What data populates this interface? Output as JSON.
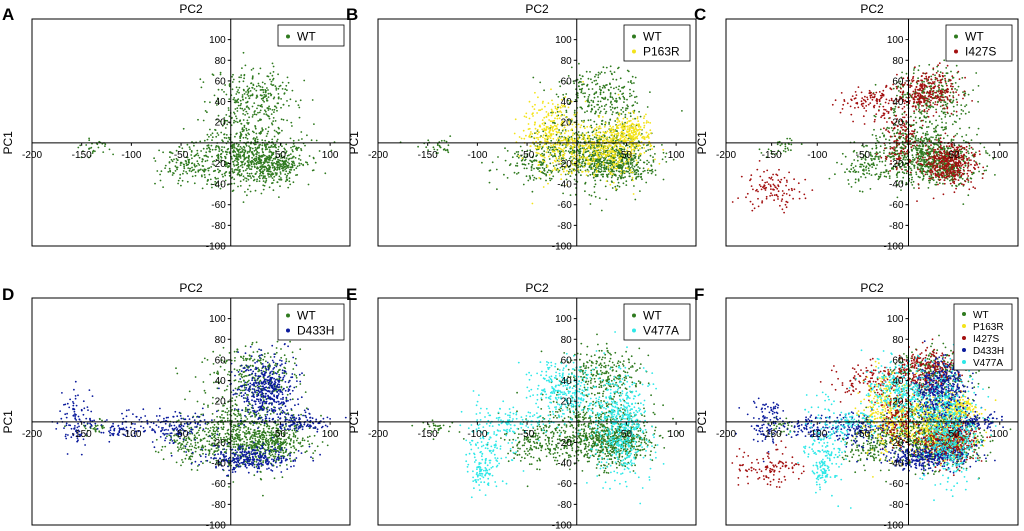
{
  "chart_data": [
    {
      "id": "A",
      "panel_label": "A",
      "type": "scatter",
      "top_label": "PC2",
      "side_label": "PC1",
      "xlim": [
        -200,
        120
      ],
      "ylim": [
        -100,
        120
      ],
      "x_ticks": [
        "-200",
        "-150",
        "-100",
        "-50",
        "50",
        "100"
      ],
      "y_ticks": [
        "-100",
        "-80",
        "-60",
        "-40",
        "-20",
        "20",
        "40",
        "60",
        "80",
        "100"
      ],
      "series": [
        {
          "name": "WT",
          "color": "#2f7a1f",
          "clusters": [
            [
              25,
              45,
              22,
              14,
              280
            ],
            [
              15,
              -10,
              28,
              16,
              620
            ],
            [
              40,
              -22,
              18,
              9,
              300
            ],
            [
              -45,
              -22,
              16,
              10,
              120
            ],
            [
              -140,
              -5,
              10,
              4,
              30
            ]
          ]
        }
      ]
    },
    {
      "id": "B",
      "panel_label": "B",
      "type": "scatter",
      "top_label": "PC2",
      "side_label": "PC1",
      "xlim": [
        -200,
        120
      ],
      "ylim": [
        -100,
        120
      ],
      "x_ticks": [
        "-200",
        "-150",
        "-100",
        "-50",
        "50",
        "100"
      ],
      "y_ticks": [
        "-100",
        "-80",
        "-60",
        "-40",
        "-20",
        "20",
        "40",
        "60",
        "80",
        "100"
      ],
      "series": [
        {
          "name": "WT",
          "color": "#2f7a1f",
          "clusters": [
            [
              25,
              45,
              22,
              14,
              280
            ],
            [
              15,
              -10,
              28,
              16,
              620
            ],
            [
              40,
              -22,
              18,
              9,
              300
            ],
            [
              -45,
              -22,
              16,
              10,
              120
            ],
            [
              -140,
              -5,
              10,
              4,
              30
            ]
          ]
        },
        {
          "name": "P163R",
          "color": "#f3e31a",
          "clusters": [
            [
              -25,
              10,
              14,
              20,
              320
            ],
            [
              30,
              -5,
              22,
              14,
              450
            ],
            [
              55,
              10,
              10,
              8,
              200
            ]
          ]
        }
      ]
    },
    {
      "id": "C",
      "panel_label": "C",
      "type": "scatter",
      "top_label": "PC2",
      "side_label": "PC1",
      "xlim": [
        -200,
        120
      ],
      "ylim": [
        -100,
        120
      ],
      "x_ticks": [
        "-200",
        "-150",
        "-100",
        "-50",
        "50",
        "100"
      ],
      "y_ticks": [
        "-100",
        "-80",
        "-60",
        "-40",
        "-20",
        "20",
        "40",
        "60",
        "80",
        "100"
      ],
      "series": [
        {
          "name": "WT",
          "color": "#2f7a1f",
          "clusters": [
            [
              25,
              45,
              22,
              14,
              280
            ],
            [
              15,
              -10,
              28,
              16,
              620
            ],
            [
              40,
              -22,
              18,
              9,
              300
            ],
            [
              -45,
              -22,
              16,
              10,
              120
            ],
            [
              -140,
              -5,
              10,
              4,
              30
            ]
          ]
        },
        {
          "name": "I427S",
          "color": "#a31010",
          "clusters": [
            [
              20,
              50,
              18,
              10,
              300
            ],
            [
              -40,
              40,
              20,
              8,
              120
            ],
            [
              45,
              -20,
              15,
              10,
              420
            ],
            [
              -10,
              5,
              10,
              15,
              140
            ],
            [
              -150,
              -45,
              18,
              9,
              110
            ]
          ]
        }
      ]
    },
    {
      "id": "D",
      "panel_label": "D",
      "type": "scatter",
      "top_label": "PC2",
      "side_label": "PC1",
      "xlim": [
        -200,
        120
      ],
      "ylim": [
        -100,
        120
      ],
      "x_ticks": [
        "-200",
        "-150",
        "-100",
        "-50",
        "50",
        "100"
      ],
      "y_ticks": [
        "-100",
        "-80",
        "-60",
        "-40",
        "-20",
        "20",
        "40",
        "60",
        "80",
        "100"
      ],
      "series": [
        {
          "name": "WT",
          "color": "#2f7a1f",
          "clusters": [
            [
              25,
              45,
              22,
              14,
              280
            ],
            [
              15,
              -10,
              28,
              16,
              620
            ],
            [
              40,
              -22,
              18,
              9,
              300
            ],
            [
              -45,
              -22,
              16,
              10,
              120
            ],
            [
              -140,
              -5,
              10,
              4,
              30
            ]
          ]
        },
        {
          "name": "D433H",
          "color": "#0a1a9c",
          "clusters": [
            [
              35,
              30,
              15,
              15,
              450
            ],
            [
              20,
              -35,
              25,
              6,
              320
            ],
            [
              -155,
              0,
              10,
              12,
              100
            ],
            [
              -110,
              -5,
              12,
              6,
              70
            ],
            [
              -60,
              -5,
              20,
              8,
              150
            ],
            [
              70,
              0,
              15,
              5,
              120
            ]
          ]
        }
      ]
    },
    {
      "id": "E",
      "panel_label": "E",
      "type": "scatter",
      "top_label": "PC2",
      "side_label": "PC1",
      "xlim": [
        -200,
        120
      ],
      "ylim": [
        -100,
        120
      ],
      "x_ticks": [
        "-200",
        "-150",
        "-100",
        "-50",
        "50",
        "100"
      ],
      "y_ticks": [
        "-100",
        "-80",
        "-60",
        "-40",
        "-20",
        "20",
        "40",
        "60",
        "80",
        "100"
      ],
      "series": [
        {
          "name": "WT",
          "color": "#2f7a1f",
          "clusters": [
            [
              25,
              45,
              22,
              14,
              280
            ],
            [
              15,
              -10,
              28,
              16,
              620
            ],
            [
              40,
              -22,
              18,
              9,
              300
            ],
            [
              -45,
              -22,
              16,
              10,
              120
            ],
            [
              -140,
              -5,
              10,
              4,
              30
            ]
          ]
        },
        {
          "name": "V477A",
          "color": "#2ee8e8",
          "clusters": [
            [
              -10,
              30,
              18,
              15,
              300
            ],
            [
              45,
              -5,
              15,
              25,
              520
            ],
            [
              -90,
              -20,
              12,
              20,
              150
            ],
            [
              -95,
              -50,
              5,
              8,
              60
            ],
            [
              -60,
              0,
              15,
              6,
              80
            ]
          ]
        }
      ]
    },
    {
      "id": "F",
      "panel_label": "F",
      "type": "scatter",
      "top_label": "PC2",
      "side_label": "PC1",
      "xlim": [
        -200,
        120
      ],
      "ylim": [
        -100,
        120
      ],
      "x_ticks": [
        "-200",
        "-150",
        "-100",
        "-50",
        "50",
        "100"
      ],
      "y_ticks": [
        "-100",
        "-80",
        "-60",
        "-40",
        "-20",
        "20",
        "40",
        "60",
        "80",
        "100"
      ],
      "series": [
        {
          "name": "WT",
          "color": "#2f7a1f",
          "clusters": [
            [
              25,
              45,
              22,
              14,
              280
            ],
            [
              15,
              -10,
              28,
              16,
              620
            ],
            [
              40,
              -22,
              18,
              9,
              300
            ],
            [
              -45,
              -22,
              16,
              10,
              120
            ],
            [
              -140,
              -5,
              10,
              4,
              30
            ]
          ]
        },
        {
          "name": "P163R",
          "color": "#f3e31a",
          "clusters": [
            [
              -25,
              10,
              14,
              20,
              320
            ],
            [
              30,
              -5,
              22,
              14,
              450
            ],
            [
              55,
              10,
              10,
              8,
              200
            ]
          ]
        },
        {
          "name": "I427S",
          "color": "#a31010",
          "clusters": [
            [
              20,
              50,
              18,
              10,
              300
            ],
            [
              -40,
              40,
              20,
              8,
              120
            ],
            [
              45,
              -20,
              15,
              10,
              420
            ],
            [
              -10,
              5,
              10,
              15,
              140
            ],
            [
              -150,
              -45,
              18,
              9,
              110
            ]
          ]
        },
        {
          "name": "D433H",
          "color": "#0a1a9c",
          "clusters": [
            [
              35,
              30,
              15,
              15,
              450
            ],
            [
              20,
              -35,
              25,
              6,
              320
            ],
            [
              -155,
              0,
              10,
              12,
              100
            ],
            [
              -110,
              -5,
              12,
              6,
              70
            ],
            [
              -60,
              -5,
              20,
              8,
              150
            ],
            [
              70,
              0,
              15,
              5,
              120
            ]
          ]
        },
        {
          "name": "V477A",
          "color": "#2ee8e8",
          "clusters": [
            [
              -10,
              30,
              18,
              15,
              300
            ],
            [
              45,
              -5,
              15,
              25,
              520
            ],
            [
              -90,
              -20,
              12,
              20,
              150
            ],
            [
              -95,
              -50,
              5,
              8,
              60
            ],
            [
              -60,
              0,
              15,
              6,
              80
            ]
          ]
        }
      ]
    }
  ]
}
